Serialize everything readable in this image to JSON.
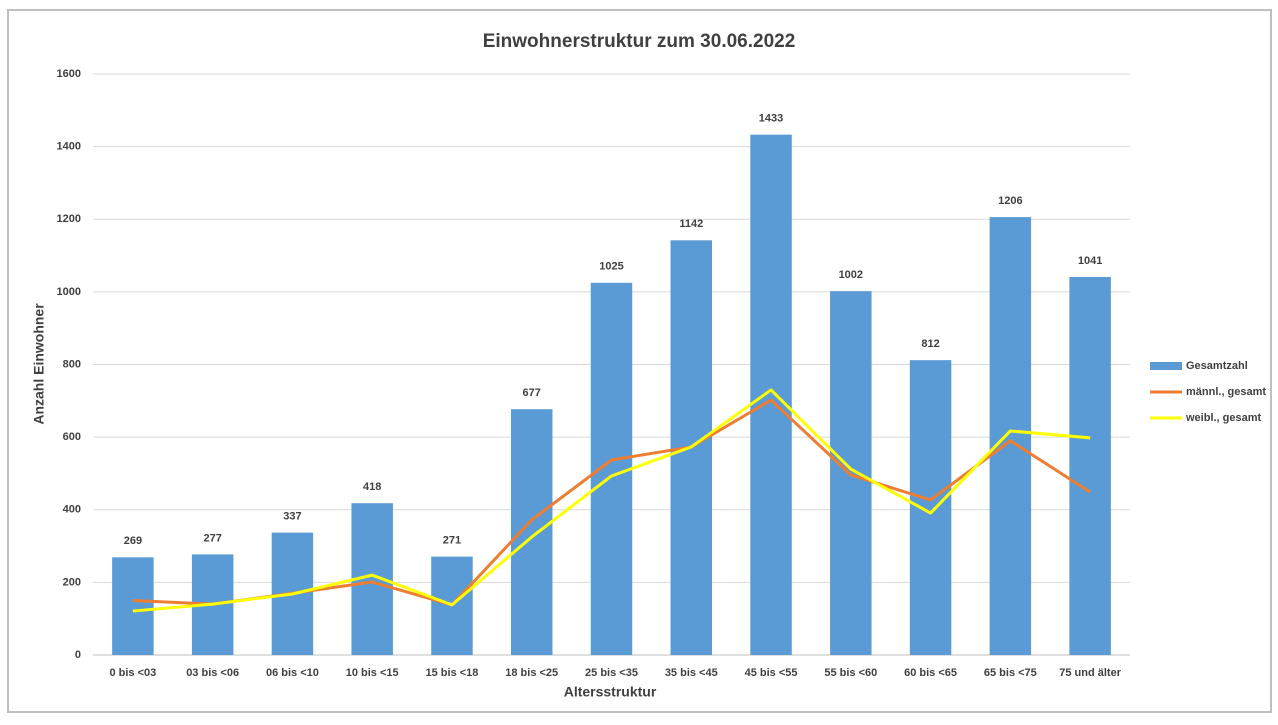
{
  "chart_data": {
    "type": "combo",
    "title": "Einwohnerstruktur zum 30.06.2022",
    "x_label": "Altersstruktur",
    "y_label": "Anzahl Einwohner",
    "categories": [
      "0 bis <03",
      "03 bis <06",
      "06 bis <10",
      "10 bis <15",
      "15 bis <18",
      "18 bis <25",
      "25 bis <35",
      "35 bis <45",
      "45 bis <55",
      "55 bis <60",
      "60 bis <65",
      "65 bis <75",
      "75 und älter"
    ],
    "series": [
      {
        "name": "Gesamtzahl",
        "type": "bar",
        "color": "#5b9bd5",
        "values": [
          269,
          277,
          337,
          418,
          271,
          677,
          1025,
          1142,
          1433,
          1002,
          812,
          1206,
          1041
        ],
        "data_labels": true
      },
      {
        "name": "männl., gesamt",
        "type": "line",
        "color": "#ed7d31",
        "values": [
          150,
          140,
          170,
          201,
          138,
          372,
          537,
          573,
          702,
          496,
          427,
          590,
          449
        ]
      },
      {
        "name": "weibl., gesamt",
        "type": "line",
        "color": "#ffff00",
        "values": [
          121,
          140,
          168,
          220,
          138,
          325,
          493,
          573,
          730,
          512,
          391,
          617,
          598
        ]
      }
    ],
    "ylim": [
      0,
      1600
    ],
    "yticks": [
      0,
      200,
      400,
      600,
      800,
      1000,
      1200,
      1400,
      1600
    ],
    "grid": true,
    "legend": "right"
  }
}
